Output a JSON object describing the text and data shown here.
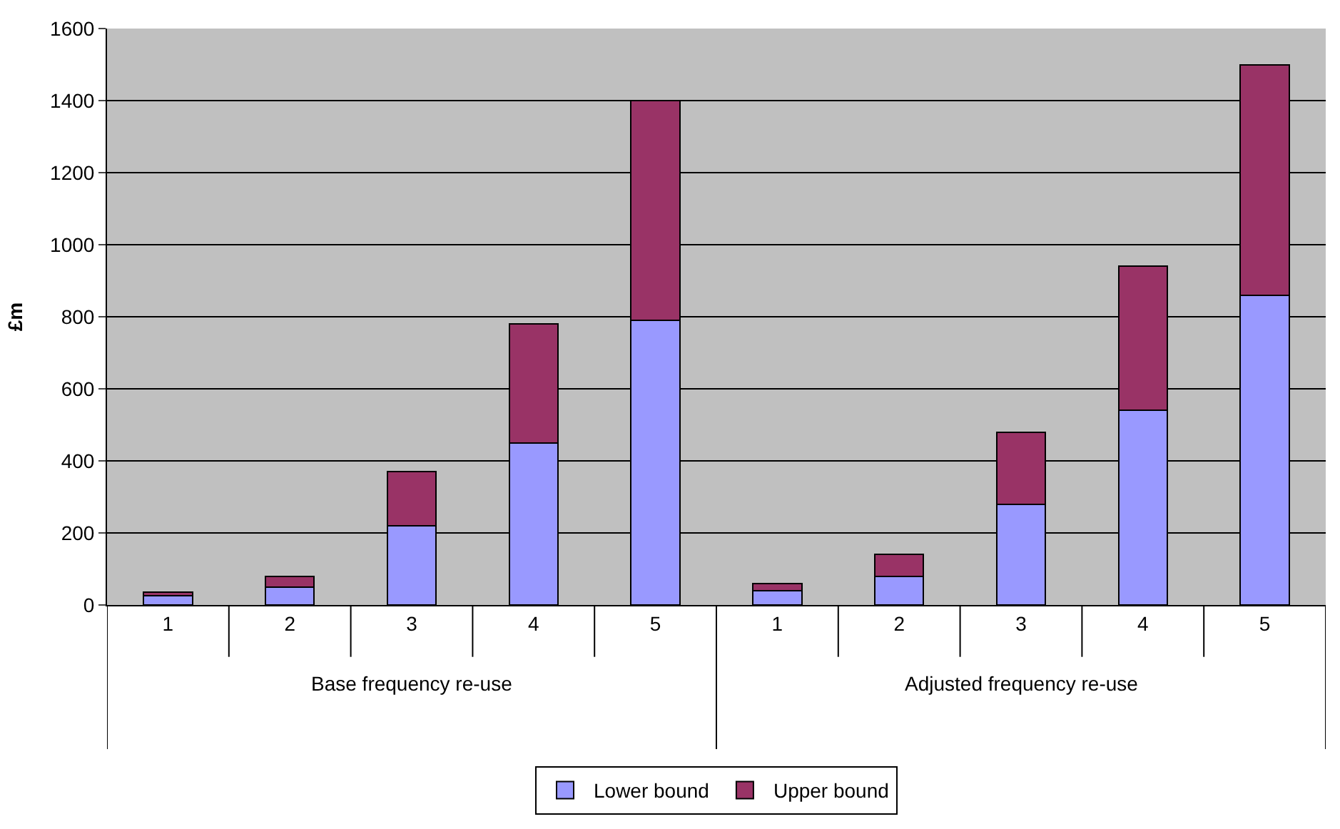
{
  "chart_data": {
    "type": "bar",
    "stacked": true,
    "ylabel": "£m",
    "categories": [
      "1",
      "2",
      "3",
      "4",
      "5",
      "1",
      "2",
      "3",
      "4",
      "5"
    ],
    "series": [
      {
        "name": "Lower bound",
        "color": "#9999ff",
        "values": [
          25,
          50,
          220,
          450,
          790,
          40,
          80,
          280,
          540,
          860
        ]
      },
      {
        "name": "Upper bound",
        "color": "#993366",
        "values": [
          10,
          30,
          150,
          330,
          610,
          20,
          60,
          200,
          400,
          640
        ]
      }
    ],
    "annotations": [
      "Base frequency re-use",
      "Adjusted frequency re-use"
    ],
    "ylim": [
      0,
      1600
    ],
    "yticks": [
      0,
      200,
      400,
      600,
      800,
      1000,
      1200,
      1400,
      1600
    ],
    "grid": "y",
    "legend": "bottom"
  }
}
